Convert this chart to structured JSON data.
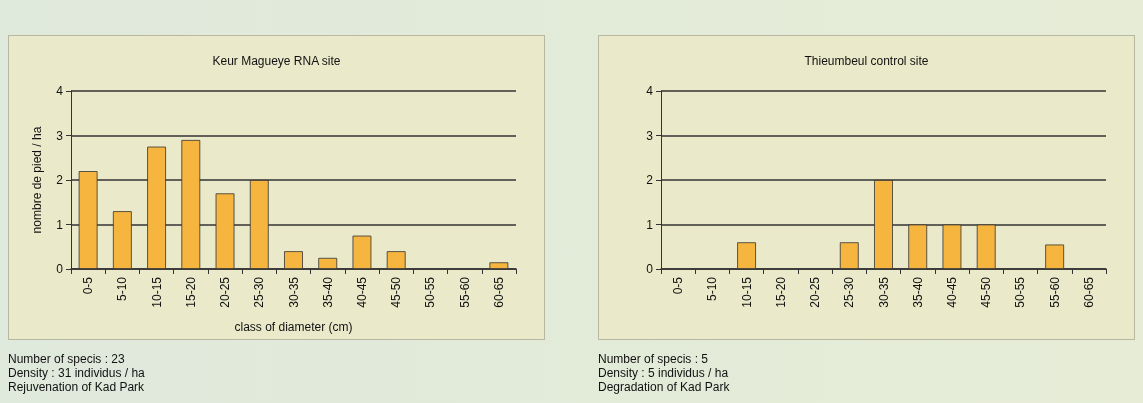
{
  "chart_data": [
    {
      "type": "bar",
      "title": "Keur Magueye RNA site",
      "xlabel": "class of diameter (cm)",
      "ylabel": "nombre de pied / ha",
      "categories": [
        "0-5",
        "5-10",
        "10-15",
        "15-20",
        "20-25",
        "25-30",
        "30-35",
        "35-40",
        "40-45",
        "45-50",
        "50-55",
        "55-60",
        "60-65"
      ],
      "values": [
        2.2,
        1.3,
        2.75,
        2.9,
        1.7,
        2.0,
        0.4,
        0.25,
        0.75,
        0.4,
        0,
        0,
        0.15
      ],
      "color": "#f5b53f",
      "ylim": [
        0,
        4
      ],
      "yticks": [
        0,
        1,
        2,
        3,
        4
      ],
      "grid": "y",
      "annotations": [
        "Number of specis : 23",
        "Density : 31 individus / ha",
        "Rejuvenation of Kad Park"
      ]
    },
    {
      "type": "bar",
      "title": "Thieumbeul control site",
      "categories": [
        "0-5",
        "5-10",
        "10-15",
        "15-20",
        "20-25",
        "25-30",
        "30-35",
        "35-40",
        "40-45",
        "45-50",
        "50-55",
        "55-60",
        "60-65"
      ],
      "values": [
        0,
        0,
        0.6,
        0,
        0,
        0.6,
        2,
        1,
        1,
        1,
        0,
        0.55,
        0
      ],
      "color": "#f5b53f",
      "ylim": [
        0,
        4
      ],
      "yticks": [
        0,
        1,
        2,
        3,
        4
      ],
      "grid": "y",
      "annotations": [
        "Number of specis : 5",
        "Density : 5 individus / ha",
        "Degradation of Kad Park"
      ]
    }
  ]
}
